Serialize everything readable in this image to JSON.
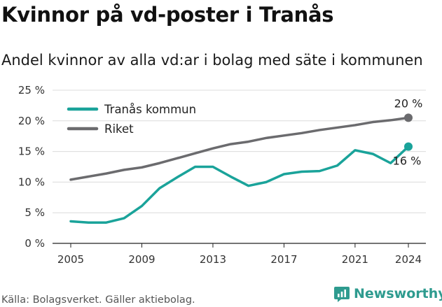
{
  "page": {
    "title": "Kvinnor på vd-poster i Tranås",
    "subtitle": "Andel kvinnor av alla vd:ar i bolag med säte i kommunen",
    "source": "Källa: Bolagsverket. Gäller aktiebolag.",
    "brand": "Newsworthy"
  },
  "chart_data": {
    "type": "line",
    "x": [
      2005,
      2006,
      2007,
      2008,
      2009,
      2010,
      2011,
      2012,
      2013,
      2014,
      2015,
      2016,
      2017,
      2018,
      2019,
      2020,
      2021,
      2022,
      2023,
      2024
    ],
    "series": [
      {
        "name": "Tranås kommun",
        "color": "#1aa39a",
        "values": [
          3.6,
          3.4,
          3.4,
          4.1,
          6.1,
          9.0,
          10.8,
          12.5,
          12.5,
          10.9,
          9.4,
          10.0,
          11.3,
          11.7,
          11.8,
          12.7,
          15.2,
          14.6,
          13.1,
          15.8
        ],
        "end_label": "16 %"
      },
      {
        "name": "Riket",
        "color": "#6b6b6e",
        "values": [
          10.4,
          10.9,
          11.4,
          12.0,
          12.4,
          13.1,
          13.9,
          14.7,
          15.5,
          16.2,
          16.6,
          17.2,
          17.6,
          18.0,
          18.5,
          18.9,
          19.3,
          19.8,
          20.1,
          20.5
        ],
        "end_label": "20 %"
      }
    ],
    "xticks": [
      "2005",
      "2009",
      "2013",
      "2017",
      "2021",
      "2024"
    ],
    "yticks": [
      "0 %",
      "5 %",
      "10 %",
      "15 %",
      "20 %",
      "25 %"
    ],
    "ylim": [
      0,
      25
    ],
    "grid": "horizontal",
    "legend": "top-left"
  }
}
